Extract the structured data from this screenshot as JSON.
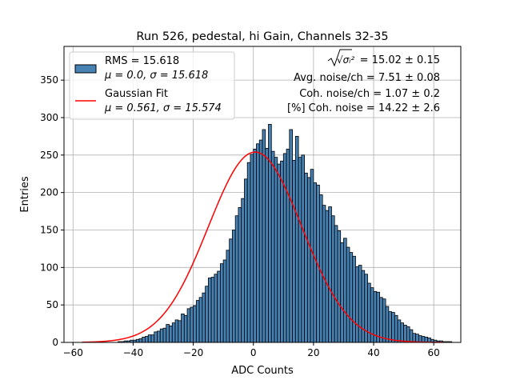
{
  "chart_data": {
    "type": "bar",
    "title": "Run 526, pedestal, hi Gain, Channels 32-35",
    "xlabel": "ADC Counts",
    "ylabel": "Entries",
    "xlim": [
      -63,
      69
    ],
    "ylim": [
      0,
      395
    ],
    "xticks": [
      -60,
      -40,
      -20,
      0,
      20,
      40,
      60
    ],
    "yticks": [
      0,
      50,
      100,
      150,
      200,
      250,
      300,
      350
    ],
    "grid": true,
    "legend_position": "top-left",
    "bin_width": 1,
    "bin_start": -57,
    "bin_values": [
      0,
      0,
      0,
      0,
      0,
      0,
      0,
      0,
      0,
      0,
      0,
      0,
      1,
      1,
      2,
      2,
      3,
      3,
      4,
      5,
      7,
      8,
      10,
      10,
      14,
      15,
      18,
      19,
      24,
      22,
      26,
      30,
      29,
      38,
      36,
      45,
      47,
      49,
      56,
      60,
      66,
      75,
      86,
      87,
      91,
      95,
      105,
      110,
      123,
      138,
      150,
      169,
      180,
      192,
      218,
      240,
      251,
      258,
      265,
      270,
      284,
      259,
      291,
      255,
      247,
      238,
      242,
      252,
      258,
      284,
      243,
      275,
      247,
      250,
      226,
      220,
      231,
      213,
      210,
      197,
      183,
      176,
      181,
      169,
      156,
      149,
      133,
      139,
      127,
      120,
      115,
      101,
      103,
      96,
      91,
      79,
      73,
      68,
      67,
      60,
      58,
      48,
      41,
      40,
      36,
      30,
      26,
      23,
      21,
      17,
      12,
      11,
      9,
      8,
      7,
      6,
      4,
      3,
      2,
      2,
      1,
      1,
      1,
      0
    ],
    "series": [
      {
        "name": "RMS = 15.618",
        "name_line2": "μ = 0.0, σ = 15.618",
        "kind": "histogram",
        "color": "#4682b4",
        "edgecolor": "#000000"
      },
      {
        "name": "Gaussian Fit",
        "name_line2": "μ = 0.561, σ = 15.574",
        "kind": "line",
        "color": "#ff0000",
        "amplitude": 254,
        "mu": 0.561,
        "sigma": 15.574,
        "x_range": [
          -57,
          63
        ]
      }
    ],
    "annotations": [
      {
        "id": "total_noise",
        "prefix": "√σᵢ²",
        "text": " = 15.02 ± 0.15"
      },
      {
        "id": "avg_noise",
        "text": "Avg. noise/ch = 7.51 ± 0.08"
      },
      {
        "id": "coh_noise",
        "text": "Coh. noise/ch = 1.07 ± 0.2"
      },
      {
        "id": "coh_pct",
        "text": "[%] Coh. noise = 14.22 ± 2.6"
      }
    ]
  }
}
